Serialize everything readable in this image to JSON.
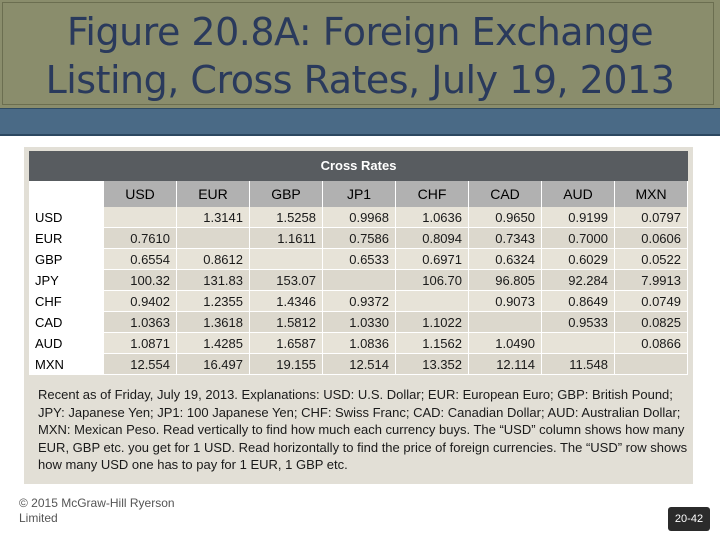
{
  "slide": {
    "title_line1": "Figure 20.8A: Foreign Exchange",
    "title_line2": "Listing, Cross Rates, July 19, 2013",
    "copyright_line1": "© 2015 McGraw-Hill Ryerson",
    "copyright_line2": "Limited",
    "page_number": "20-42"
  },
  "table": {
    "heading": "Cross Rates",
    "columns": [
      "USD",
      "EUR",
      "GBP",
      "JP1",
      "CHF",
      "CAD",
      "AUD",
      "MXN"
    ],
    "rows": [
      {
        "label": "USD",
        "cells": [
          "",
          "1.3141",
          "1.5258",
          "0.9968",
          "1.0636",
          "0.9650",
          "0.9199",
          "0.0797"
        ]
      },
      {
        "label": "EUR",
        "cells": [
          "0.7610",
          "",
          "1.1611",
          "0.7586",
          "0.8094",
          "0.7343",
          "0.7000",
          "0.0606"
        ]
      },
      {
        "label": "GBP",
        "cells": [
          "0.6554",
          "0.8612",
          "",
          "0.6533",
          "0.6971",
          "0.6324",
          "0.6029",
          "0.0522"
        ]
      },
      {
        "label": "JPY",
        "cells": [
          "100.32",
          "131.83",
          "153.07",
          "",
          "106.70",
          "96.805",
          "92.284",
          "7.9913"
        ]
      },
      {
        "label": "CHF",
        "cells": [
          "0.9402",
          "1.2355",
          "1.4346",
          "0.9372",
          "",
          "0.9073",
          "0.8649",
          "0.0749"
        ]
      },
      {
        "label": "CAD",
        "cells": [
          "1.0363",
          "1.3618",
          "1.5812",
          "1.0330",
          "1.1022",
          "",
          "0.9533",
          "0.0825"
        ]
      },
      {
        "label": "AUD",
        "cells": [
          "1.0871",
          "1.4285",
          "1.6587",
          "1.0836",
          "1.1562",
          "1.0490",
          "",
          "0.0866"
        ]
      },
      {
        "label": "MXN",
        "cells": [
          "12.554",
          "16.497",
          "19.155",
          "12.514",
          "13.352",
          "12.114",
          "11.548",
          ""
        ]
      }
    ],
    "notes": "Recent as of Friday, July 19, 2013. Explanations: USD: U.S. Dollar; EUR: European Euro; GBP: British Pound; JPY: Japanese Yen; JP1: 100 Japanese Yen; CHF: Swiss Franc; CAD: Canadian Dollar; AUD: Australian Dollar; MXN: Mexican Peso. Read vertically to find how much each currency buys. The “USD” column shows how many EUR, GBP etc. you get for 1 USD. Read horizontally to find the price of foreign currencies. The “USD” row shows how many USD one has to pay for 1 EUR, 1 GBP etc."
  }
}
